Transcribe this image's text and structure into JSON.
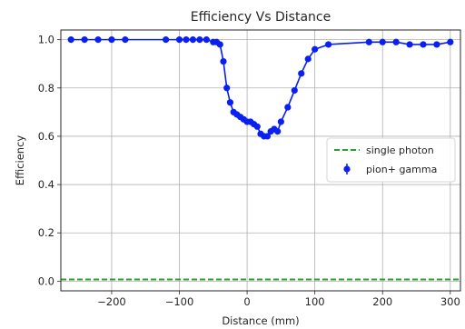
{
  "chart_data": {
    "type": "line",
    "title": "Efficiency Vs Distance",
    "xlabel": "Distance (mm)",
    "ylabel": "Efficiency",
    "xlim": [
      -275,
      315
    ],
    "ylim": [
      -0.04,
      1.04
    ],
    "xticks": [
      -200,
      -100,
      0,
      100,
      200,
      300
    ],
    "xtick_labels": [
      "−200",
      "−100",
      "0",
      "100",
      "200",
      "300"
    ],
    "yticks": [
      0.0,
      0.2,
      0.4,
      0.6,
      0.8,
      1.0
    ],
    "ytick_labels": [
      "0.0",
      "0.2",
      "0.4",
      "0.6",
      "0.8",
      "1.0"
    ],
    "grid": true,
    "legend_position": "center-right",
    "series": [
      {
        "name": "pion+ gamma",
        "style": "line-markers-errorbars",
        "color": "#0a1ff2",
        "x": [
          -260,
          -240,
          -220,
          -200,
          -180,
          -120,
          -100,
          -90,
          -80,
          -70,
          -60,
          -50,
          -45,
          -40,
          -35,
          -30,
          -25,
          -20,
          -15,
          -10,
          -5,
          0,
          5,
          10,
          15,
          20,
          25,
          30,
          35,
          40,
          45,
          50,
          60,
          70,
          80,
          90,
          100,
          120,
          180,
          200,
          220,
          240,
          260,
          280,
          300
        ],
        "y": [
          1.0,
          1.0,
          1.0,
          1.0,
          1.0,
          1.0,
          1.0,
          1.0,
          1.0,
          1.0,
          1.0,
          0.99,
          0.99,
          0.98,
          0.91,
          0.8,
          0.74,
          0.7,
          0.69,
          0.68,
          0.67,
          0.66,
          0.66,
          0.65,
          0.64,
          0.61,
          0.6,
          0.6,
          0.62,
          0.63,
          0.62,
          0.66,
          0.72,
          0.79,
          0.86,
          0.92,
          0.96,
          0.98,
          0.99,
          0.99,
          0.99,
          0.98,
          0.98,
          0.98,
          0.99
        ]
      },
      {
        "name": "single photon",
        "style": "dashed-line",
        "color": "#2ca02c",
        "x": [
          -275,
          315
        ],
        "y": [
          0.007,
          0.007
        ]
      }
    ]
  }
}
